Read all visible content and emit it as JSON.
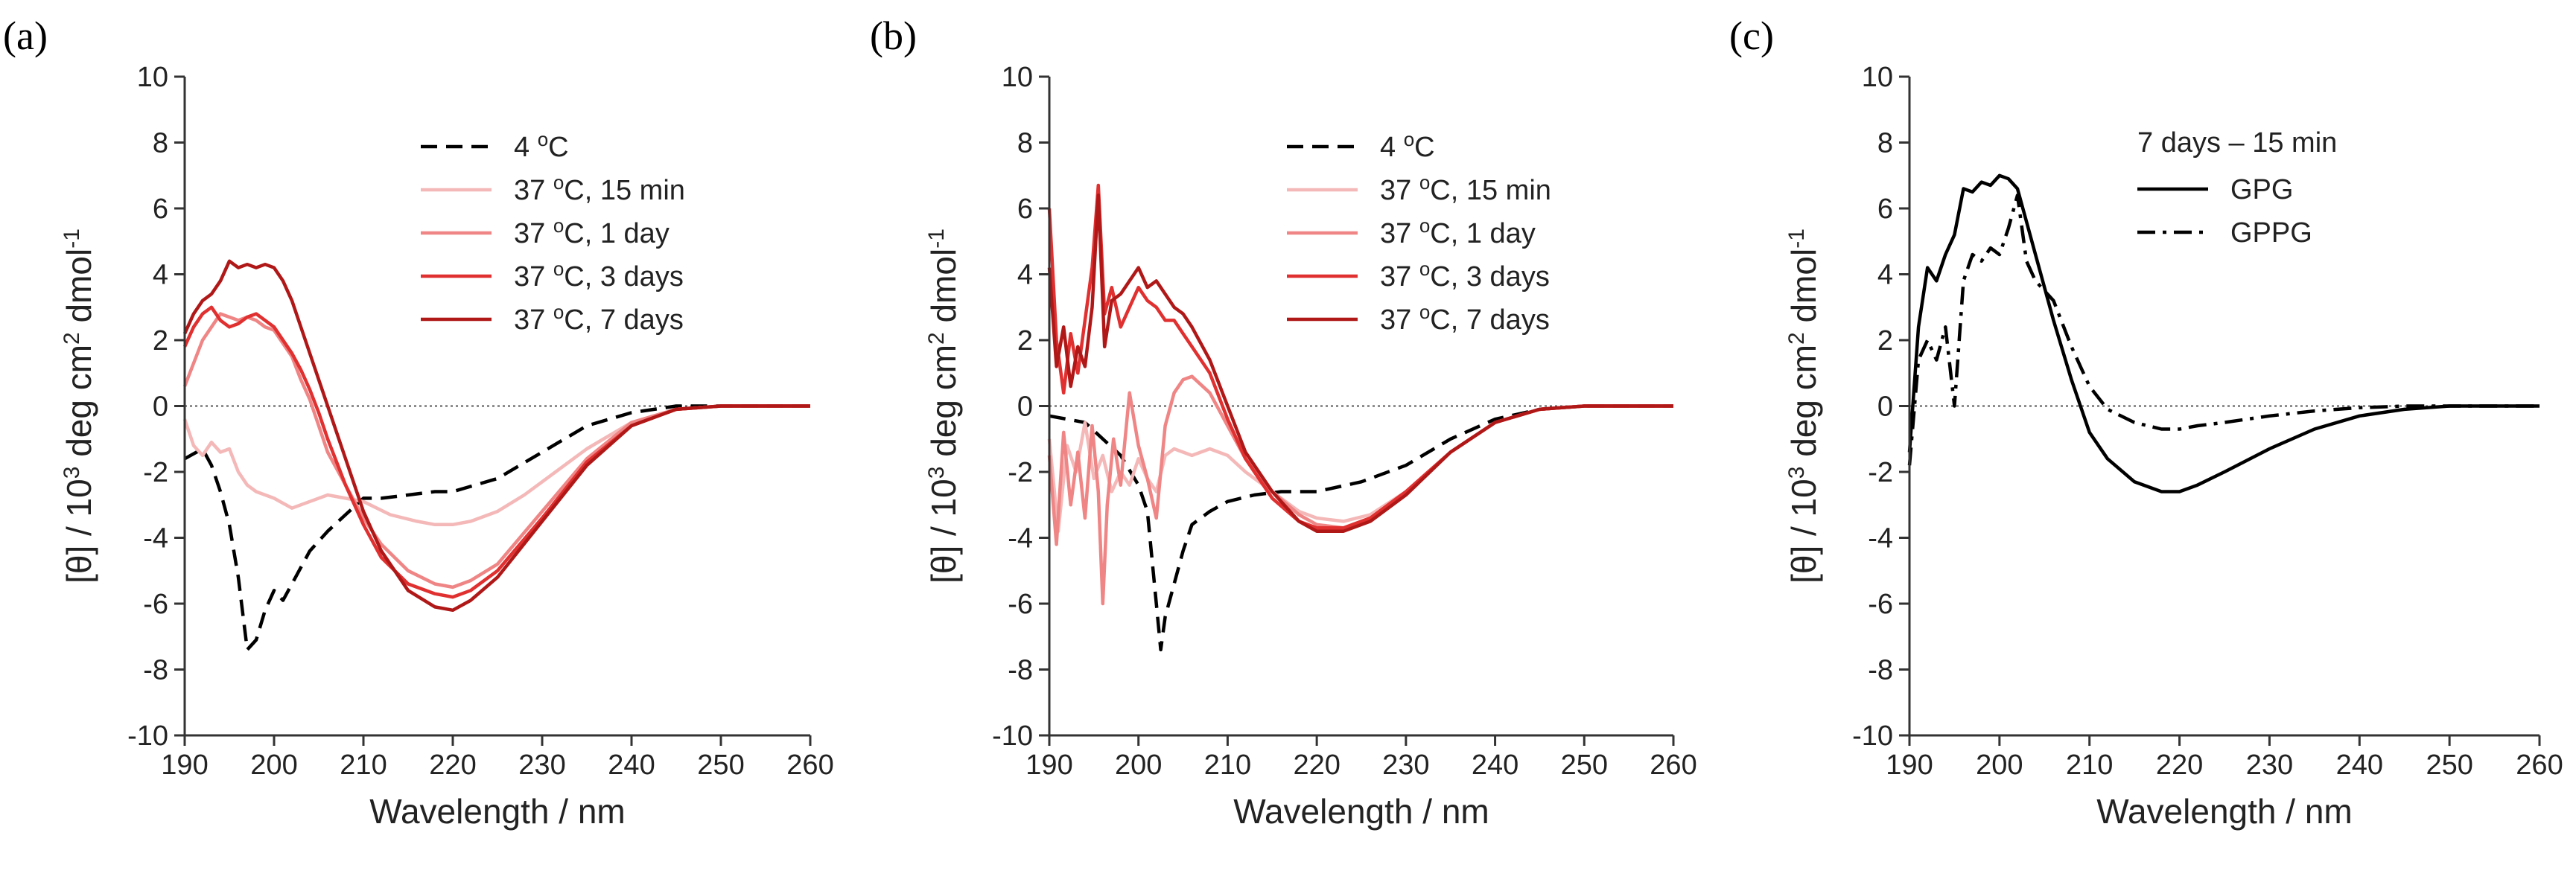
{
  "figure": {
    "panel_labels": [
      "(a)",
      "(b)",
      "(c)"
    ]
  },
  "chart_data": [
    {
      "panel": "(a)",
      "type": "line",
      "xlabel": "Wavelength / nm",
      "ylabel_parts": {
        "pre": "[θ] / 10",
        "sup1": "3",
        "mid": " deg cm",
        "sup2": "2",
        "post": " dmol",
        "sup3": "-1"
      },
      "xlim": [
        190,
        260
      ],
      "ylim": [
        -10,
        10
      ],
      "xticks": [
        190,
        200,
        210,
        220,
        230,
        240,
        250,
        260
      ],
      "yticks": [
        -10,
        -8,
        -6,
        -4,
        -2,
        0,
        2,
        4,
        6,
        8,
        10
      ],
      "zero_line": true,
      "legend": {
        "position": "top-right"
      },
      "series": [
        {
          "name": "4 °C",
          "label_parts": [
            "4 ",
            "o",
            "C"
          ],
          "color": "#000000",
          "dash": "dashed",
          "x": [
            190,
            192,
            193,
            194,
            195,
            196,
            197,
            198,
            199,
            200,
            201,
            202,
            204,
            206,
            208,
            210,
            212,
            215,
            218,
            220,
            225,
            230,
            235,
            240,
            245,
            250,
            255,
            260
          ],
          "y": [
            -1.6,
            -1.3,
            -1.8,
            -2.6,
            -3.6,
            -5.2,
            -7.4,
            -7.1,
            -6.2,
            -5.6,
            -5.9,
            -5.4,
            -4.4,
            -3.8,
            -3.3,
            -2.8,
            -2.8,
            -2.7,
            -2.6,
            -2.6,
            -2.2,
            -1.4,
            -0.6,
            -0.2,
            0,
            0,
            0,
            0
          ]
        },
        {
          "name": "37 °C, 15 min",
          "label_parts": [
            "37 ",
            "o",
            "C, 15 min"
          ],
          "color": "#f4b8b8",
          "dash": "solid",
          "x": [
            190,
            191,
            192,
            193,
            194,
            195,
            196,
            197,
            198,
            200,
            202,
            204,
            206,
            208,
            210,
            213,
            216,
            218,
            220,
            222,
            225,
            228,
            230,
            235,
            240,
            245,
            250,
            255,
            260
          ],
          "y": [
            -0.4,
            -1.2,
            -1.5,
            -1.1,
            -1.4,
            -1.3,
            -2.0,
            -2.4,
            -2.6,
            -2.8,
            -3.1,
            -2.9,
            -2.7,
            -2.8,
            -2.9,
            -3.3,
            -3.5,
            -3.6,
            -3.6,
            -3.5,
            -3.2,
            -2.7,
            -2.3,
            -1.3,
            -0.5,
            -0.1,
            0,
            0,
            0
          ]
        },
        {
          "name": "37 °C, 1 day",
          "label_parts": [
            "37 ",
            "o",
            "C, 1 day"
          ],
          "color": "#ef8585",
          "dash": "solid",
          "x": [
            190,
            191,
            192,
            193,
            194,
            195,
            196,
            197,
            198,
            199,
            200,
            202,
            203,
            204,
            205,
            206,
            208,
            210,
            212,
            215,
            218,
            220,
            222,
            225,
            230,
            235,
            240,
            245,
            250,
            255,
            260
          ],
          "y": [
            0.6,
            1.3,
            2.0,
            2.4,
            2.8,
            2.7,
            2.6,
            2.7,
            2.6,
            2.4,
            2.3,
            1.5,
            0.8,
            0.2,
            -0.6,
            -1.4,
            -2.4,
            -3.4,
            -4.2,
            -5.0,
            -5.4,
            -5.5,
            -5.3,
            -4.8,
            -3.2,
            -1.6,
            -0.5,
            -0.1,
            0,
            0,
            0
          ]
        },
        {
          "name": "37 °C, 3 days",
          "label_parts": [
            "37 ",
            "o",
            "C, 3 days"
          ],
          "color": "#e03030",
          "dash": "solid",
          "x": [
            190,
            191,
            192,
            193,
            194,
            195,
            196,
            197,
            198,
            199,
            200,
            201,
            202,
            203,
            204,
            205,
            206,
            208,
            210,
            212,
            215,
            218,
            220,
            222,
            225,
            230,
            235,
            240,
            245,
            250,
            255,
            260
          ],
          "y": [
            1.8,
            2.4,
            2.8,
            3.0,
            2.6,
            2.4,
            2.5,
            2.7,
            2.8,
            2.6,
            2.4,
            2.0,
            1.6,
            1.1,
            0.5,
            -0.2,
            -1.0,
            -2.4,
            -3.6,
            -4.6,
            -5.4,
            -5.7,
            -5.8,
            -5.6,
            -5.0,
            -3.4,
            -1.7,
            -0.6,
            -0.1,
            0,
            0,
            0
          ]
        },
        {
          "name": "37 °C, 7 days",
          "label_parts": [
            "37 ",
            "o",
            "C, 7 days"
          ],
          "color": "#b01818",
          "dash": "solid",
          "x": [
            190,
            191,
            192,
            193,
            194,
            195,
            196,
            197,
            198,
            199,
            200,
            201,
            202,
            203,
            204,
            205,
            206,
            208,
            210,
            212,
            215,
            218,
            220,
            222,
            225,
            230,
            235,
            240,
            245,
            250,
            255,
            260
          ],
          "y": [
            2.2,
            2.8,
            3.2,
            3.4,
            3.8,
            4.4,
            4.2,
            4.3,
            4.2,
            4.3,
            4.2,
            3.8,
            3.2,
            2.4,
            1.6,
            0.8,
            0.0,
            -1.6,
            -3.2,
            -4.4,
            -5.6,
            -6.1,
            -6.2,
            -5.9,
            -5.2,
            -3.5,
            -1.8,
            -0.6,
            -0.1,
            0,
            0,
            0
          ]
        }
      ]
    },
    {
      "panel": "(b)",
      "type": "line",
      "xlabel": "Wavelength / nm",
      "ylabel_parts": {
        "pre": "[θ] / 10",
        "sup1": "3",
        "mid": " deg cm",
        "sup2": "2",
        "post": " dmol",
        "sup3": "-1"
      },
      "xlim": [
        190,
        260
      ],
      "ylim": [
        -10,
        10
      ],
      "xticks": [
        190,
        200,
        210,
        220,
        230,
        240,
        250,
        260
      ],
      "yticks": [
        -10,
        -8,
        -6,
        -4,
        -2,
        0,
        2,
        4,
        6,
        8,
        10
      ],
      "zero_line": true,
      "legend": {
        "position": "top-right"
      },
      "series": [
        {
          "name": "4 °C",
          "label_parts": [
            "4 ",
            "o",
            "C"
          ],
          "color": "#000000",
          "dash": "dashed",
          "x": [
            190,
            194,
            198,
            200,
            201,
            202,
            202.5,
            203,
            204,
            205,
            206,
            208,
            210,
            213,
            216,
            220,
            225,
            230,
            235,
            240,
            245,
            250,
            255,
            260
          ],
          "y": [
            -0.3,
            -0.5,
            -1.5,
            -2.4,
            -3.2,
            -6.0,
            -7.4,
            -6.4,
            -5.4,
            -4.4,
            -3.6,
            -3.2,
            -2.9,
            -2.7,
            -2.6,
            -2.6,
            -2.3,
            -1.8,
            -1.0,
            -0.4,
            -0.1,
            0,
            0,
            0
          ]
        },
        {
          "name": "37 °C, 15 min",
          "label_parts": [
            "37 ",
            "o",
            "C, 15 min"
          ],
          "color": "#f4b8b8",
          "dash": "solid",
          "x": [
            190,
            191,
            192,
            193,
            194,
            195,
            196,
            197,
            198,
            199,
            200,
            201,
            202,
            203,
            204,
            206,
            208,
            210,
            212,
            215,
            218,
            220,
            223,
            226,
            230,
            235,
            240,
            245,
            250,
            255,
            260
          ],
          "y": [
            -1.0,
            -3.8,
            -1.2,
            -2.0,
            -0.5,
            -2.2,
            -1.5,
            -2.6,
            -2.0,
            -2.4,
            -1.6,
            -2.2,
            -2.6,
            -1.5,
            -1.3,
            -1.5,
            -1.3,
            -1.5,
            -2.0,
            -2.6,
            -3.2,
            -3.4,
            -3.5,
            -3.3,
            -2.6,
            -1.4,
            -0.5,
            -0.1,
            0,
            0,
            0
          ]
        },
        {
          "name": "37 °C, 1 day",
          "label_parts": [
            "37 ",
            "o",
            "C, 1 day"
          ],
          "color": "#ef8585",
          "dash": "solid",
          "x": [
            190,
            190.8,
            191.6,
            192.4,
            193.2,
            194,
            194.8,
            195.5,
            196,
            196.5,
            197.2,
            198,
            199,
            200,
            201,
            202,
            203,
            204,
            205,
            206,
            208,
            210,
            212,
            215,
            218,
            220,
            223,
            226,
            230,
            235,
            240,
            245,
            250,
            255,
            260
          ],
          "y": [
            -1.5,
            -4.2,
            -0.8,
            -3.0,
            -1.4,
            -3.4,
            -0.6,
            -2.6,
            -6.0,
            -3.0,
            -1.0,
            -2.4,
            0.4,
            -1.2,
            -2.2,
            -3.4,
            -0.6,
            0.4,
            0.8,
            0.9,
            0.4,
            -0.6,
            -1.6,
            -2.6,
            -3.3,
            -3.6,
            -3.7,
            -3.4,
            -2.6,
            -1.4,
            -0.5,
            -0.1,
            0,
            0,
            0
          ]
        },
        {
          "name": "37 °C, 3 days",
          "label_parts": [
            "37 ",
            "o",
            "C, 3 days"
          ],
          "color": "#e03030",
          "dash": "solid",
          "x": [
            190,
            190.8,
            191.6,
            192.4,
            193.2,
            194,
            194.8,
            195.5,
            196.2,
            197,
            198,
            199,
            200,
            201,
            202,
            203,
            204,
            205,
            206,
            208,
            210,
            212,
            215,
            218,
            220,
            223,
            226,
            230,
            235,
            240,
            245,
            250,
            255,
            260
          ],
          "y": [
            6.0,
            2.0,
            0.4,
            2.2,
            1.0,
            2.6,
            4.2,
            6.7,
            2.8,
            3.6,
            2.4,
            3.0,
            3.6,
            3.2,
            3.0,
            2.6,
            2.6,
            2.2,
            1.8,
            1.0,
            -0.4,
            -1.6,
            -2.8,
            -3.5,
            -3.7,
            -3.7,
            -3.4,
            -2.6,
            -1.4,
            -0.5,
            -0.1,
            0,
            0,
            0
          ]
        },
        {
          "name": "37 °C, 7 days",
          "label_parts": [
            "37 ",
            "o",
            "C, 7 days"
          ],
          "color": "#b01818",
          "dash": "solid",
          "x": [
            190,
            190.8,
            191.6,
            192.4,
            193.2,
            194,
            194.8,
            195.5,
            196.2,
            197,
            198,
            199,
            200,
            201,
            202,
            203,
            204,
            205,
            206,
            208,
            210,
            212,
            215,
            218,
            220,
            223,
            226,
            230,
            235,
            240,
            245,
            250,
            255,
            260
          ],
          "y": [
            4.2,
            1.2,
            2.4,
            0.6,
            1.8,
            1.2,
            3.0,
            6.4,
            1.8,
            3.2,
            3.4,
            3.8,
            4.2,
            3.6,
            3.8,
            3.4,
            3.0,
            2.8,
            2.4,
            1.4,
            0.0,
            -1.4,
            -2.6,
            -3.5,
            -3.8,
            -3.8,
            -3.5,
            -2.7,
            -1.4,
            -0.5,
            -0.1,
            0,
            0,
            0
          ]
        }
      ]
    },
    {
      "panel": "(c)",
      "type": "line",
      "xlabel": "Wavelength / nm",
      "ylabel_parts": {
        "pre": "[θ] / 10",
        "sup1": "3",
        "mid": " deg cm",
        "sup2": "2",
        "post": " dmol",
        "sup3": "-1"
      },
      "xlim": [
        190,
        260
      ],
      "ylim": [
        -10,
        10
      ],
      "xticks": [
        190,
        200,
        210,
        220,
        230,
        240,
        250,
        260
      ],
      "yticks": [
        -10,
        -8,
        -6,
        -4,
        -2,
        0,
        2,
        4,
        6,
        8,
        10
      ],
      "zero_line": true,
      "legend": {
        "position": "top-right",
        "title": "7 days – 15 min"
      },
      "series": [
        {
          "name": "GPG",
          "label_parts": [
            "GPG",
            "",
            ""
          ],
          "color": "#000000",
          "dash": "solid",
          "x": [
            190,
            191,
            192,
            193,
            194,
            195,
            196,
            197,
            198,
            199,
            200,
            201,
            202,
            203,
            204,
            206,
            208,
            210,
            212,
            215,
            218,
            220,
            222,
            225,
            230,
            235,
            240,
            245,
            250,
            255,
            260
          ],
          "y": [
            -1.4,
            2.4,
            4.2,
            3.8,
            4.6,
            5.2,
            6.6,
            6.5,
            6.8,
            6.7,
            7.0,
            6.9,
            6.6,
            5.6,
            4.6,
            2.6,
            0.8,
            -0.8,
            -1.6,
            -2.3,
            -2.6,
            -2.6,
            -2.4,
            -2.0,
            -1.3,
            -0.7,
            -0.3,
            -0.1,
            0,
            0,
            0
          ]
        },
        {
          "name": "GPPG",
          "label_parts": [
            "GPPG",
            "",
            ""
          ],
          "color": "#000000",
          "dash": "dashdot",
          "x": [
            190,
            191,
            192,
            193,
            194,
            195,
            196,
            197,
            198,
            199,
            200,
            201,
            202,
            203,
            204,
            206,
            208,
            210,
            212,
            215,
            218,
            220,
            222,
            225,
            230,
            235,
            240,
            245,
            250,
            255,
            260
          ],
          "y": [
            -1.8,
            1.4,
            2.0,
            1.4,
            2.4,
            0.0,
            3.8,
            4.6,
            4.4,
            4.8,
            4.6,
            5.4,
            6.4,
            4.4,
            3.8,
            3.2,
            1.8,
            0.6,
            -0.1,
            -0.5,
            -0.7,
            -0.7,
            -0.6,
            -0.5,
            -0.3,
            -0.15,
            -0.05,
            0,
            0,
            0,
            0
          ]
        }
      ]
    }
  ]
}
